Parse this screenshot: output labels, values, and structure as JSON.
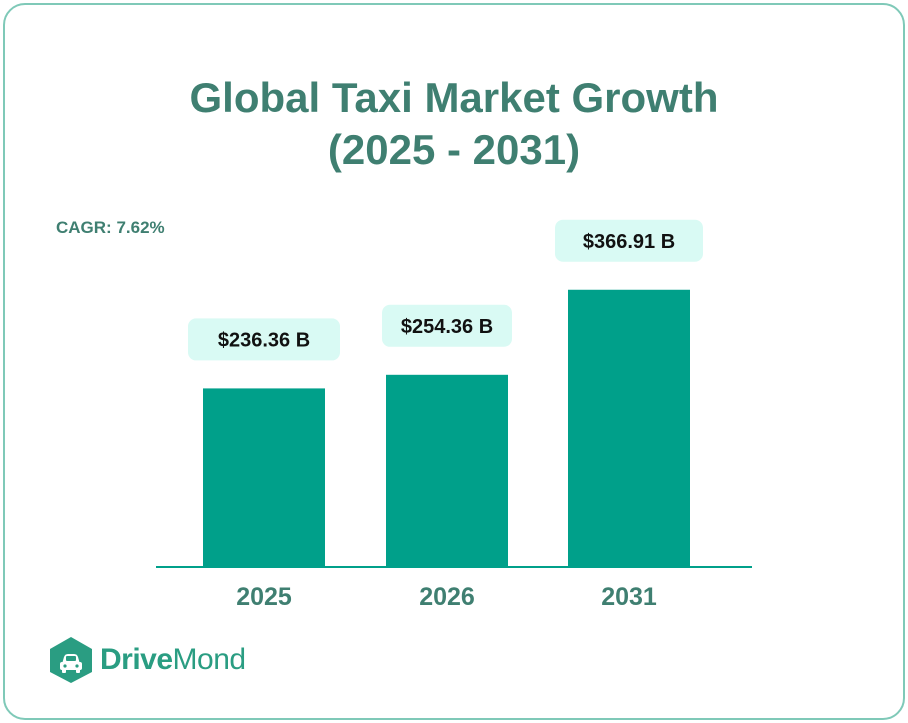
{
  "title_line1": "Global Taxi Market Growth",
  "title_line2": "(2025 - 2031)",
  "cagr_label": "CAGR: 7.62%",
  "brand": {
    "part1": "Drive",
    "part2": "Mond",
    "logo_icon": "car-hexagon-icon"
  },
  "colors": {
    "bar": "#00a08a",
    "label_bg": "#d9faf4",
    "title": "#3f7f71",
    "axis_text": "#3f7f71",
    "border": "#7fc9b8",
    "brand": "#2a9d82"
  },
  "chart_data": {
    "type": "bar",
    "title": "Global Taxi Market Growth (2025 - 2031)",
    "categories": [
      "2025",
      "2026",
      "2031"
    ],
    "values": [
      236.36,
      254.36,
      366.91
    ],
    "value_labels": [
      "$236.36 B",
      "$254.36 B",
      "$366.91 B"
    ],
    "unit": "B",
    "xlabel": "",
    "ylabel": "",
    "grid": false,
    "legend": "none"
  }
}
